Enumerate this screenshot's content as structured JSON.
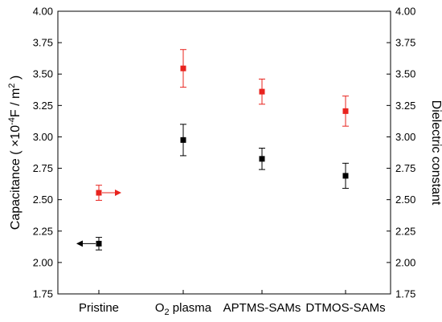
{
  "chart_data": {
    "type": "scatter",
    "categories": [
      "Pristine",
      "O2 plasma",
      "APTMS-SAMs",
      "DTMOS-SAMs"
    ],
    "category_labels": [
      {
        "text": "Pristine"
      },
      {
        "prefix": "O",
        "sub": "2",
        "suffix": " plasma"
      },
      {
        "text": "APTMS-SAMs"
      },
      {
        "text": "DTMOS-SAMs"
      }
    ],
    "ylim": [
      1.75,
      4.0
    ],
    "y_ticks": [
      "1.75",
      "2.00",
      "2.25",
      "2.50",
      "2.75",
      "3.00",
      "3.25",
      "3.50",
      "3.75",
      "4.00"
    ],
    "y2_ticks": [
      "1.75",
      "2.00",
      "2.25",
      "2.50",
      "2.75",
      "3.00",
      "3.25",
      "3.50",
      "3.75",
      "4.00"
    ],
    "ylabel": {
      "pre": "Capacitance ( ",
      "mid": "×10",
      "sup1": "-4",
      "mid2": "F / m",
      "sup2": "2",
      "post": " )"
    },
    "y2label": "Dielectric constant",
    "series": [
      {
        "axis": "left",
        "color": "#000000",
        "values": [
          2.15,
          2.975,
          2.825,
          2.69
        ],
        "errors": [
          0.05,
          0.125,
          0.085,
          0.1
        ],
        "arrow": {
          "category_index": 0,
          "direction": "left"
        }
      },
      {
        "axis": "right",
        "color": "#e8231e",
        "values": [
          2.555,
          3.545,
          3.36,
          3.205
        ],
        "errors": [
          0.06,
          0.15,
          0.1,
          0.12
        ],
        "arrow": {
          "category_index": 0,
          "direction": "right"
        }
      }
    ]
  }
}
